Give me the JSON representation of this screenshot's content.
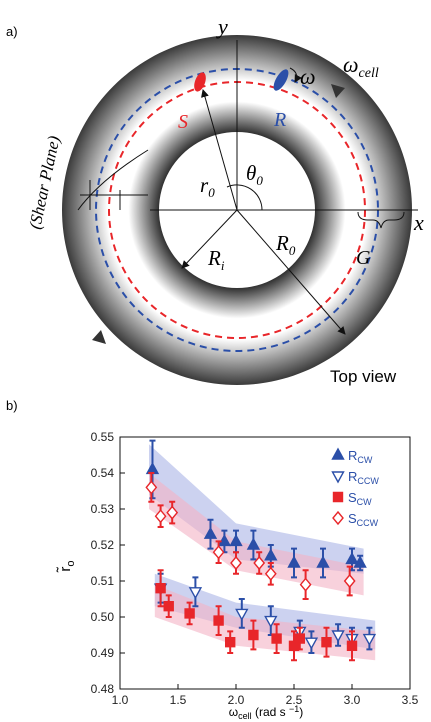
{
  "panel_a": {
    "label": "a)",
    "y_axis": "y",
    "x_axis": "x",
    "omega": "ω",
    "omega_cell": [
      "ω",
      "cell"
    ],
    "S": "S",
    "R": "R",
    "shear_plane": "(Shear Plane)",
    "r0": [
      "r",
      "0"
    ],
    "theta0": [
      "θ",
      "0"
    ],
    "Ri": [
      "R",
      "i"
    ],
    "R0": [
      "R",
      "0"
    ],
    "G": "G",
    "top_view": "Top view"
  },
  "chart_data": {
    "type": "scatter",
    "label": "b)",
    "x_label": [
      "ω",
      "cell",
      " (rad s ",
      "−1",
      ")"
    ],
    "y_label": [
      "r̃",
      "o"
    ],
    "xlim": [
      1.0,
      3.5
    ],
    "xticks": [
      {
        "value": 1.0,
        "label": "1.0"
      },
      1.5,
      {
        "value": 2.0,
        "label": "2.0"
      },
      2.5,
      {
        "value": 3.0,
        "label": "3.0"
      },
      3.5
    ],
    "ylim": [
      0.48,
      0.55
    ],
    "yticks": [
      0.48,
      0.49,
      {
        "value": 0.5,
        "label": "0.50"
      },
      0.51,
      0.52,
      0.53,
      0.54,
      0.55
    ],
    "series": [
      {
        "name": "R",
        "subscript": "CW",
        "color": "#2b4fa8",
        "marker": "triangle-up",
        "filled": true,
        "x": [
          1.28,
          1.78,
          1.9,
          2.0,
          2.15,
          2.3,
          2.5,
          2.75,
          3.0,
          3.07
        ],
        "values": [
          0.541,
          0.523,
          0.521,
          0.521,
          0.52,
          0.517,
          0.515,
          0.515,
          0.516,
          0.515
        ],
        "errors": [
          0.008,
          0.004,
          0.003,
          0.003,
          0.004,
          0.003,
          0.004,
          0.004,
          0.003,
          0.002
        ]
      },
      {
        "name": "R",
        "subscript": "CCW",
        "color": "#2b4fa8",
        "marker": "triangle-down",
        "filled": false,
        "x": [
          1.35,
          1.65,
          2.05,
          2.3,
          2.55,
          2.65,
          2.88,
          3.0,
          3.15
        ],
        "values": [
          0.508,
          0.507,
          0.501,
          0.499,
          0.496,
          0.493,
          0.495,
          0.494,
          0.494
        ],
        "errors": [
          0.004,
          0.004,
          0.004,
          0.004,
          0.003,
          0.003,
          0.003,
          0.003,
          0.003
        ]
      },
      {
        "name": "S",
        "subscript": "CW",
        "color": "#e8262a",
        "marker": "square",
        "filled": true,
        "x": [
          1.35,
          1.42,
          1.6,
          1.85,
          1.95,
          2.15,
          2.35,
          2.5,
          2.55,
          2.78,
          3.0
        ],
        "values": [
          0.508,
          0.503,
          0.501,
          0.499,
          0.493,
          0.495,
          0.494,
          0.492,
          0.494,
          0.493,
          0.492
        ],
        "errors": [
          0.005,
          0.003,
          0.003,
          0.004,
          0.003,
          0.004,
          0.004,
          0.004,
          0.003,
          0.004,
          0.004
        ]
      },
      {
        "name": "S",
        "subscript": "CCW",
        "color": "#e8262a",
        "marker": "diamond",
        "filled": false,
        "x": [
          1.27,
          1.35,
          1.45,
          1.85,
          2.0,
          2.2,
          2.3,
          2.6,
          2.98
        ],
        "values": [
          0.536,
          0.528,
          0.529,
          0.518,
          0.515,
          0.515,
          0.512,
          0.509,
          0.51
        ],
        "errors": [
          0.004,
          0.003,
          0.003,
          0.003,
          0.003,
          0.003,
          0.003,
          0.004,
          0.004
        ]
      }
    ],
    "bands": [
      {
        "color": "#aab4e6",
        "x": [
          1.25,
          2.0,
          3.1
        ],
        "lower": [
          0.534,
          0.516,
          0.512
        ],
        "upper": [
          0.548,
          0.526,
          0.519
        ]
      },
      {
        "color": "#f4b3c4",
        "x": [
          1.25,
          2.0,
          3.1
        ],
        "lower": [
          0.53,
          0.513,
          0.506
        ],
        "upper": [
          0.54,
          0.521,
          0.514
        ]
      },
      {
        "color": "#aab4e6",
        "x": [
          1.3,
          2.0,
          3.2
        ],
        "lower": [
          0.503,
          0.497,
          0.491
        ],
        "upper": [
          0.512,
          0.504,
          0.499
        ]
      },
      {
        "color": "#f4b3c4",
        "x": [
          1.3,
          2.0,
          3.2
        ],
        "lower": [
          0.5,
          0.492,
          0.488
        ],
        "upper": [
          0.509,
          0.5,
          0.496
        ]
      }
    ]
  }
}
